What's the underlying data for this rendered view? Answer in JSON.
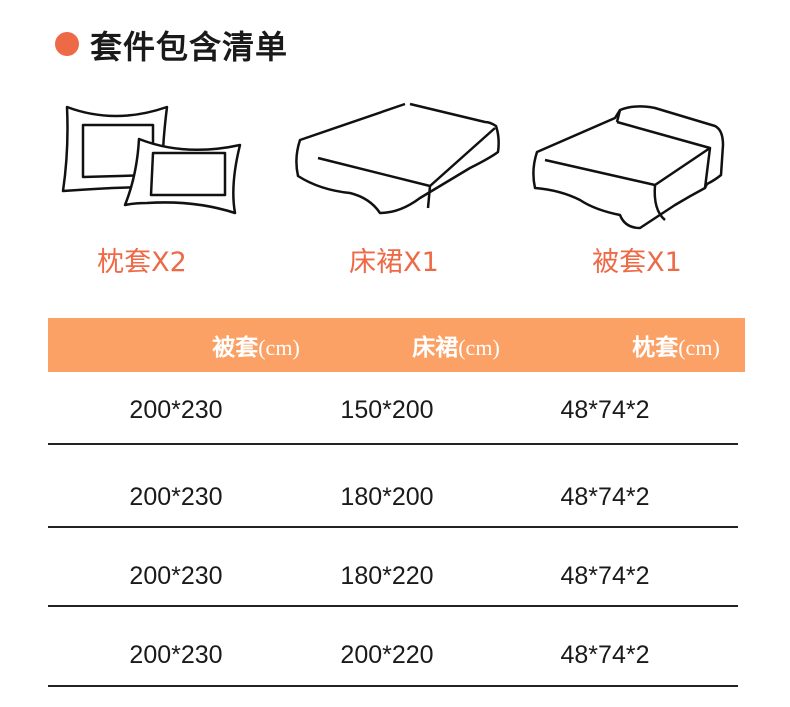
{
  "title": "套件包含清单",
  "accent_color": "#ee6a47",
  "header_color": "#fba165",
  "items": [
    {
      "icon": "pillowcase-icon",
      "label": "枕套X2"
    },
    {
      "icon": "bed-skirt-icon",
      "label": "床裙X1"
    },
    {
      "icon": "duvet-cover-icon",
      "label": "被套X1"
    }
  ],
  "table": {
    "headers": [
      {
        "name": "被套",
        "unit": "(cm)"
      },
      {
        "name": "床裙",
        "unit": "(cm)"
      },
      {
        "name": "枕套",
        "unit": "(cm)"
      }
    ],
    "rows": [
      [
        "200*230",
        "150*200",
        "48*74*2"
      ],
      [
        "200*230",
        "180*200",
        "48*74*2"
      ],
      [
        "200*230",
        "180*220",
        "48*74*2"
      ],
      [
        "200*230",
        "200*220",
        "48*74*2"
      ]
    ]
  }
}
